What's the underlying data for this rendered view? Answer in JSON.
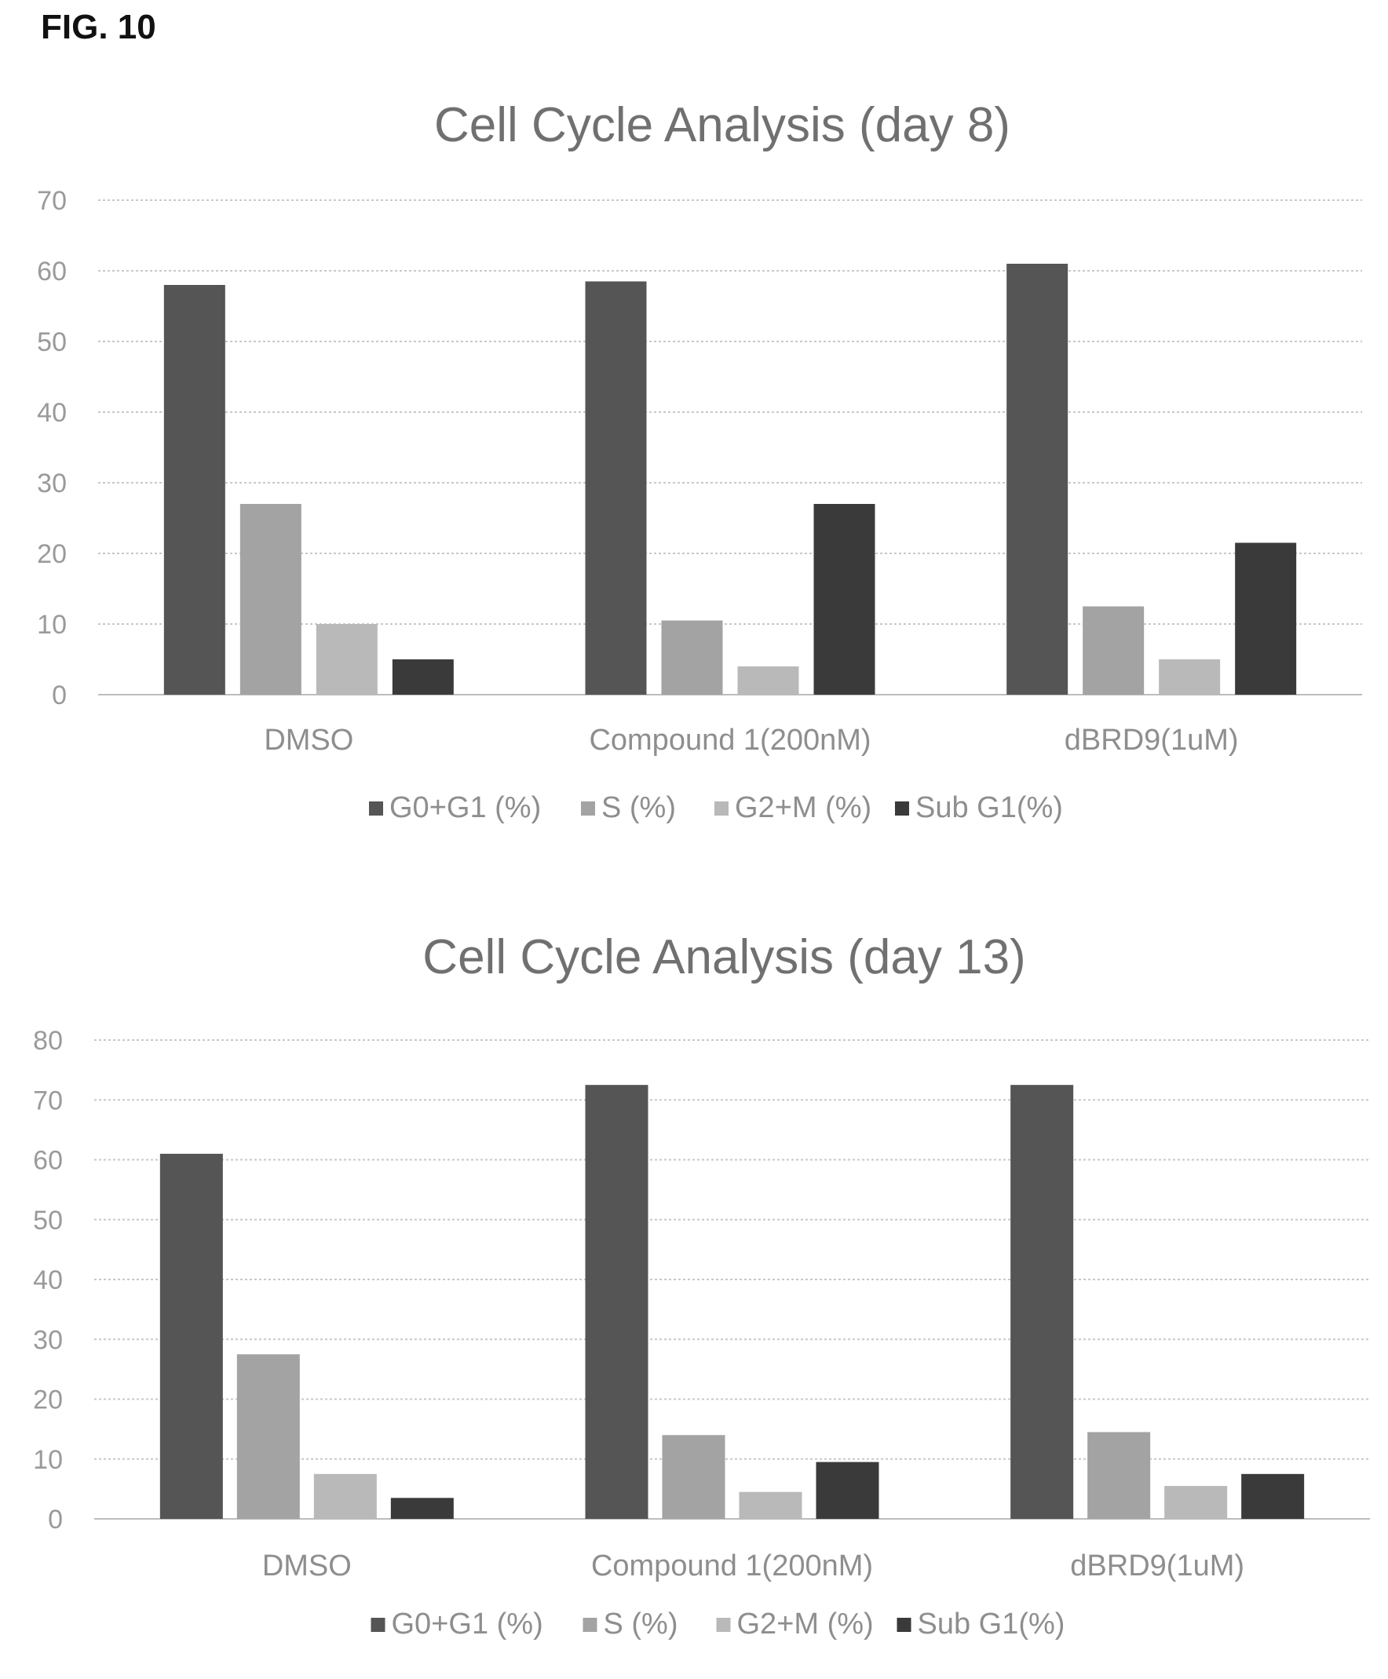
{
  "figure_label": "FIG. 10",
  "chart_data": [
    {
      "type": "bar",
      "title": "Cell Cycle Analysis (day 8)",
      "xlabel": "",
      "ylabel": "",
      "ylim": [
        0,
        70
      ],
      "yticks": [
        0,
        10,
        20,
        30,
        40,
        50,
        60,
        70
      ],
      "grid": true,
      "legend_position": "bottom",
      "categories": [
        "DMSO",
        "Compound 1(200nM)",
        "dBRD9(1uM)"
      ],
      "series": [
        {
          "name": "G0+G1 (%)",
          "color": "#555555",
          "values": [
            58,
            58.5,
            61
          ]
        },
        {
          "name": "S (%)",
          "color": "#a3a3a3",
          "values": [
            27,
            10.5,
            12.5
          ]
        },
        {
          "name": "G2+M (%)",
          "color": "#b9b9b9",
          "values": [
            10,
            4,
            5
          ]
        },
        {
          "name": "Sub G1(%)",
          "color": "#3a3a3a",
          "values": [
            5,
            27,
            21.5
          ]
        }
      ]
    },
    {
      "type": "bar",
      "title": "Cell Cycle Analysis (day 13)",
      "xlabel": "",
      "ylabel": "",
      "ylim": [
        0,
        80
      ],
      "yticks": [
        0,
        10,
        20,
        30,
        40,
        50,
        60,
        70,
        80
      ],
      "grid": true,
      "legend_position": "bottom",
      "categories": [
        "DMSO",
        "Compound 1(200nM)",
        "dBRD9(1uM)"
      ],
      "series": [
        {
          "name": "G0+G1 (%)",
          "color": "#555555",
          "values": [
            61,
            72.5,
            72.5
          ]
        },
        {
          "name": "S (%)",
          "color": "#a3a3a3",
          "values": [
            27.5,
            14,
            14.5
          ]
        },
        {
          "name": "G2+M (%)",
          "color": "#b9b9b9",
          "values": [
            7.5,
            4.5,
            5.5
          ]
        },
        {
          "name": "Sub G1(%)",
          "color": "#3a3a3a",
          "values": [
            3.5,
            9.5,
            7.5
          ]
        }
      ]
    }
  ]
}
